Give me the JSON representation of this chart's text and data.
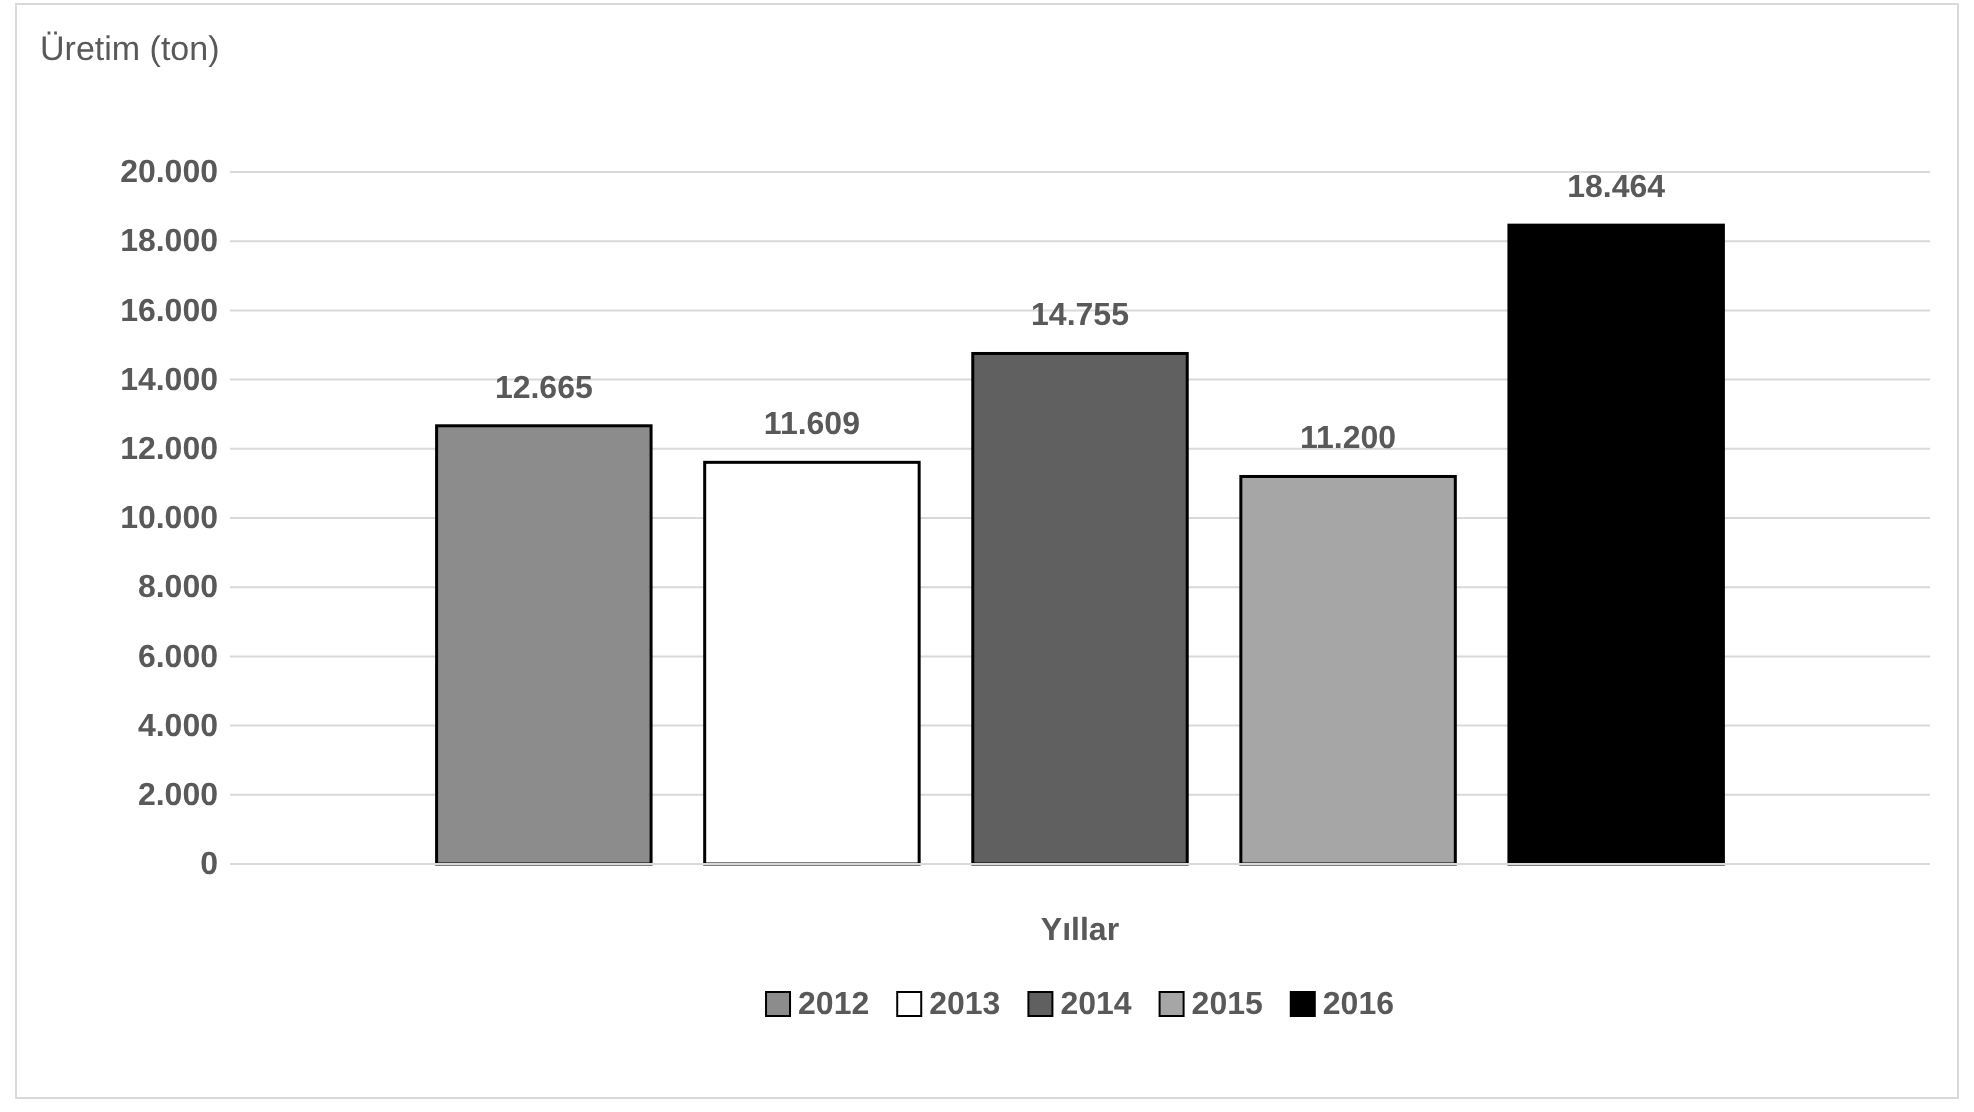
{
  "chart_data": {
    "type": "bar",
    "ylabel": "Üretim (ton)",
    "xlabel": "Yıllar",
    "categories": [
      null
    ],
    "series": [
      {
        "name": "2012",
        "color": "#8c8c8c",
        "values": [
          12665
        ]
      },
      {
        "name": "2013",
        "color": "#ffffff",
        "values": [
          11609
        ]
      },
      {
        "name": "2014",
        "color": "#606060",
        "values": [
          14755
        ]
      },
      {
        "name": "2015",
        "color": "#a6a6a6",
        "values": [
          11200
        ]
      },
      {
        "name": "2016",
        "color": "#000000",
        "values": [
          18464
        ]
      }
    ],
    "value_labels": [
      [
        "12.665"
      ],
      [
        "11.609"
      ],
      [
        "14.755"
      ],
      [
        "11.200"
      ],
      [
        "18.464"
      ]
    ],
    "ylim": [
      0,
      20000
    ],
    "yticks": [
      0,
      {
        "value": 2000,
        "label": "2.000"
      },
      {
        "value": 4000,
        "label": "4.000"
      },
      {
        "value": 6000,
        "label": "6.000"
      },
      {
        "value": 8000,
        "label": "8.000"
      },
      {
        "value": 10000,
        "label": "10.000"
      },
      {
        "value": 12000,
        "label": "12.000"
      },
      {
        "value": 14000,
        "label": "14.000"
      },
      {
        "value": 16000,
        "label": "16.000"
      },
      {
        "value": 18000,
        "label": "18.000"
      },
      {
        "value": 20000,
        "label": "20.000"
      }
    ],
    "grid": "y",
    "legend": "bottom"
  }
}
